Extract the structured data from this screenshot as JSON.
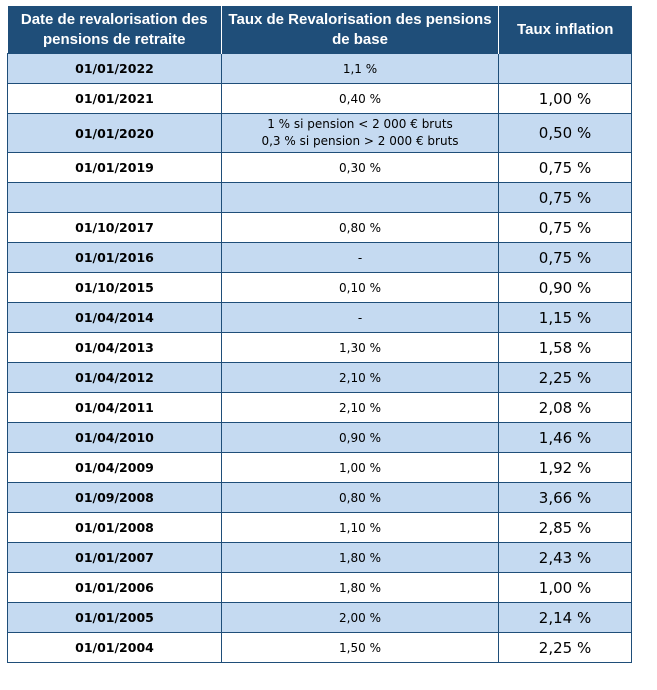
{
  "headers": {
    "date": "Date de revalorisation des pensions de retraite",
    "rate": "Taux de Revalorisation des pensions de base",
    "inflation": "Taux inflation"
  },
  "rows": [
    {
      "date": "01/01/2022",
      "rate": "1,1 %",
      "rate2": "",
      "inflation": ""
    },
    {
      "date": "01/01/2021",
      "rate": "0,40 %",
      "rate2": "",
      "inflation": "1,00 %"
    },
    {
      "date": "01/01/2020",
      "rate": "1 % si pension < 2 000 € bruts",
      "rate2": "0,3 % si pension > 2 000 € bruts",
      "inflation": "0,50 %"
    },
    {
      "date": "01/01/2019",
      "rate": "0,30 %",
      "rate2": "",
      "inflation": "0,75 %"
    },
    {
      "date": "",
      "rate": "",
      "rate2": "",
      "inflation": "0,75 %"
    },
    {
      "date": "01/10/2017",
      "rate": "0,80 %",
      "rate2": "",
      "inflation": "0,75 %"
    },
    {
      "date": "01/01/2016",
      "rate": "-",
      "rate2": "",
      "inflation": "0,75 %"
    },
    {
      "date": "01/10/2015",
      "rate": "0,10 %",
      "rate2": "",
      "inflation": "0,90 %"
    },
    {
      "date": "01/04/2014",
      "rate": "-",
      "rate2": "",
      "inflation": "1,15 %"
    },
    {
      "date": "01/04/2013",
      "rate": "1,30 %",
      "rate2": "",
      "inflation": "1,58 %"
    },
    {
      "date": "01/04/2012",
      "rate": "2,10 %",
      "rate2": "",
      "inflation": "2,25 %"
    },
    {
      "date": "01/04/2011",
      "rate": "2,10 %",
      "rate2": "",
      "inflation": "2,08 %"
    },
    {
      "date": "01/04/2010",
      "rate": "0,90 %",
      "rate2": "",
      "inflation": "1,46 %"
    },
    {
      "date": "01/04/2009",
      "rate": "1,00 %",
      "rate2": "",
      "inflation": "1,92 %"
    },
    {
      "date": "01/09/2008",
      "rate": "0,80 %",
      "rate2": "",
      "inflation": "3,66 %"
    },
    {
      "date": "01/01/2008",
      "rate": "1,10 %",
      "rate2": "",
      "inflation": "2,85 %"
    },
    {
      "date": "01/01/2007",
      "rate": "1,80 %",
      "rate2": "",
      "inflation": "2,43 %"
    },
    {
      "date": "01/01/2006",
      "rate": "1,80 %",
      "rate2": "",
      "inflation": "1,00 %"
    },
    {
      "date": "01/01/2005",
      "rate": "2,00 %",
      "rate2": "",
      "inflation": "2,14 %"
    },
    {
      "date": "01/01/2004",
      "rate": "1,50 %",
      "rate2": "",
      "inflation": "2,25 %"
    }
  ],
  "colors": {
    "header_bg": "#1f4e79",
    "stripe_bg": "#c5daf1",
    "border": "#1f4e79"
  }
}
